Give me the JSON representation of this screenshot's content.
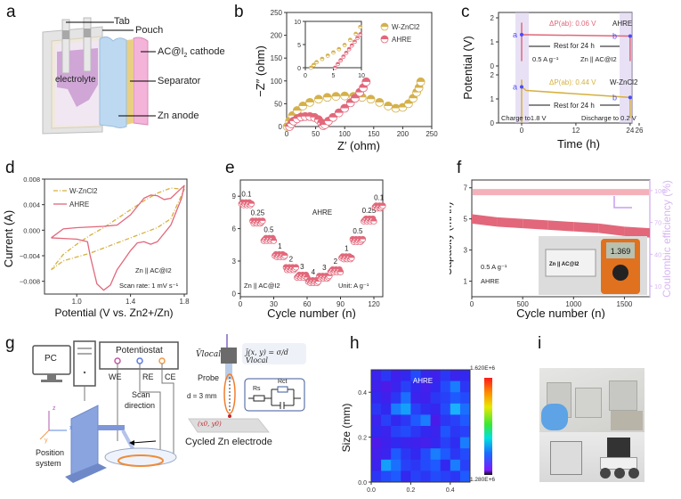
{
  "panel_labels": {
    "a": "a",
    "b": "b",
    "c": "c",
    "d": "d",
    "e": "e",
    "f": "f",
    "g": "g",
    "h": "h",
    "i": "i"
  },
  "panel_a": {
    "labels": {
      "tab": "Tab",
      "pouch": "Pouch",
      "cathode": "AC@I",
      "cathode_sub": "2",
      "cathode_tail": " cathode",
      "separator": "Separator",
      "anode": "Zn anode",
      "electrolyte": "electrolyte"
    }
  },
  "chart_data": [
    {
      "id": "b",
      "type": "scatter",
      "title": "",
      "xlabel": "Z′ (ohm)",
      "ylabel": "−Z″ (ohm)",
      "xlim": [
        0,
        250
      ],
      "ylim": [
        0,
        250
      ],
      "xticks": [
        "0",
        "50",
        "100",
        "150",
        "200",
        "250"
      ],
      "yticks": [
        "0",
        "50",
        "100",
        "150",
        "200",
        "250"
      ],
      "legend": {
        "position": "top-right",
        "entries": [
          "W-ZnCl2",
          "AHRE"
        ]
      },
      "series": [
        {
          "name": "W-ZnCl2",
          "color": "#d4b14a",
          "x": [
            1,
            5,
            10,
            18,
            28,
            40,
            55,
            70,
            85,
            100,
            115,
            130,
            145,
            160,
            175,
            188,
            200,
            210,
            218,
            224,
            228,
            231
          ],
          "y": [
            0,
            12,
            24,
            35,
            45,
            53,
            60,
            64,
            66,
            67,
            66,
            64,
            60,
            53,
            45,
            40,
            42,
            50,
            62,
            75,
            85,
            98
          ]
        },
        {
          "name": "AHRE",
          "color": "#e2677a",
          "x": [
            5,
            8,
            12,
            18,
            25,
            32,
            40,
            48,
            55,
            60,
            63,
            66,
            72,
            80,
            90,
            100,
            110,
            118,
            126,
            132,
            137
          ],
          "y": [
            0,
            6,
            12,
            17,
            21,
            22,
            22,
            20,
            15,
            8,
            2,
            4,
            12,
            20,
            30,
            40,
            52,
            62,
            75,
            85,
            98
          ]
        }
      ],
      "inset": {
        "xlim": [
          0,
          10
        ],
        "ylim": [
          0,
          10
        ],
        "xticks": [
          "0",
          "5",
          "10"
        ],
        "yticks": [
          "0",
          "5",
          "10"
        ],
        "series": [
          {
            "name": "W-ZnCl2",
            "x": [
              1,
              1.5,
              2,
              3,
              4,
              5,
              6,
              7,
              8,
              9,
              9.8
            ],
            "y": [
              0,
              0.6,
              1.2,
              1.9,
              2.6,
              3.3,
              4.0,
              4.9,
              6.0,
              7.3,
              8.8
            ]
          },
          {
            "name": "AHRE",
            "x": [
              5.3,
              5.8,
              6.3,
              6.8,
              7.3,
              7.8,
              8.3,
              8.8,
              9.3,
              9.8
            ],
            "y": [
              0,
              0.8,
              1.6,
              2.4,
              3.2,
              4.0,
              4.8,
              5.6,
              6.4,
              7.2
            ]
          }
        ]
      }
    },
    {
      "id": "c",
      "type": "line",
      "xlabel": "Time (h)",
      "ylabel": "Potential (V)",
      "xticks": [
        "0",
        "12",
        "24",
        "26"
      ],
      "yticks_top": [
        "0",
        "1",
        "2"
      ],
      "yticks_bottom": [
        "0",
        "1",
        "2"
      ],
      "annotations": {
        "dp_top": "ΔP(ab):  0.06 V",
        "dp_bottom": "ΔP(ab):  0.44 V",
        "series_top": "AHRE",
        "series_bottom": "W-ZnCl2",
        "rest_top": "Rest for 24 h",
        "rest_bottom": "Rest for 24 h",
        "current": "0.5 A g⁻¹",
        "cell": "Zn || AC@I2",
        "charge": "Charge to1.8 V",
        "discharge": "Discharge to 0.2 V",
        "point_a": "a",
        "point_b": "b"
      },
      "series": [
        {
          "name": "AHRE",
          "color": "#e2677a",
          "a_potential": 1.3,
          "b_potential": 1.24,
          "delta_v": 0.06
        },
        {
          "name": "W-ZnCl2",
          "color": "#d6b13e",
          "a_potential": 1.5,
          "b_potential": 1.06,
          "delta_v": 0.44
        }
      ]
    },
    {
      "id": "d",
      "type": "line",
      "xlabel": "Potential (V vs. Zn2+/Zn)",
      "ylabel": "Current (A)",
      "xlim": [
        0.8,
        1.8
      ],
      "ylim": [
        -0.01,
        0.008
      ],
      "xticks": [
        "1.0",
        "1.4",
        "1.8"
      ],
      "yticks": [
        "0.008",
        "0.004",
        "0.000",
        "−0.004",
        "−0.008"
      ],
      "legend": {
        "position": "top-left",
        "entries": [
          "W-ZnCl2",
          "AHRE"
        ]
      },
      "annotations": {
        "cell": "Zn || AC@I2",
        "scan_rate": "Scan rate: 1 mV s⁻¹"
      },
      "series": [
        {
          "name": "W-ZnCl2",
          "color": "#d6b13e",
          "style": "dash-dot",
          "x": [
            0.81,
            0.9,
            1.0,
            1.1,
            1.2,
            1.3,
            1.4,
            1.5,
            1.6,
            1.7,
            1.8,
            1.8,
            1.7,
            1.6,
            1.5,
            1.4,
            1.3,
            1.2,
            1.1,
            1.0,
            0.9,
            0.81
          ],
          "y": [
            -0.0062,
            -0.0048,
            -0.0042,
            -0.0036,
            -0.0028,
            -0.002,
            -0.0012,
            -0.0004,
            0.0004,
            0.0018,
            0.0064,
            0.0064,
            0.0066,
            0.0058,
            0.0046,
            0.0032,
            0.0018,
            0.0004,
            -0.0008,
            -0.0022,
            -0.0038,
            -0.0062
          ]
        },
        {
          "name": "AHRE",
          "color": "#e2677a",
          "style": "solid",
          "x": [
            0.81,
            0.9,
            1.0,
            1.1,
            1.2,
            1.3,
            1.4,
            1.5,
            1.55,
            1.6,
            1.65,
            1.7,
            1.75,
            1.8,
            1.78,
            1.7,
            1.6,
            1.55,
            1.5,
            1.45,
            1.4,
            1.3,
            1.25,
            1.2,
            1.15,
            1.1,
            1.08,
            1.0,
            0.9,
            0.81
          ],
          "y": [
            -0.0012,
            0.0002,
            0.0004,
            0.0005,
            0.0006,
            0.0008,
            0.0024,
            0.005,
            0.0055,
            0.0054,
            0.0048,
            0.005,
            0.006,
            0.007,
            0.005,
            0.0008,
            -0.0018,
            -0.0022,
            -0.0018,
            -0.002,
            -0.0032,
            -0.0062,
            -0.0086,
            -0.0094,
            -0.0084,
            -0.004,
            -0.0018,
            -0.0014,
            -0.0013,
            -0.0012
          ]
        }
      ]
    },
    {
      "id": "e",
      "type": "scatter",
      "xlabel": "Cycle number (n)",
      "ylabel": "Capacity (mAh)",
      "xlim": [
        0,
        128
      ],
      "ylim": [
        -0.3,
        10.5
      ],
      "xticks": [
        "0",
        "30",
        "60",
        "90",
        "120"
      ],
      "yticks": [
        "0",
        "3",
        "6",
        "9"
      ],
      "annotations": {
        "series": "AHRE",
        "cell": "Zn || AC@I2",
        "unit": "Unit: A g⁻¹"
      },
      "color": "#e2677a",
      "steps": [
        {
          "rate": "0.1",
          "start": 1,
          "end": 10,
          "capacity": 8.3
        },
        {
          "rate": "0.25",
          "start": 11,
          "end": 20,
          "capacity": 6.6
        },
        {
          "rate": "0.5",
          "start": 21,
          "end": 30,
          "capacity": 5.0
        },
        {
          "rate": "1",
          "start": 31,
          "end": 40,
          "capacity": 3.5
        },
        {
          "rate": "2",
          "start": 41,
          "end": 50,
          "capacity": 2.3
        },
        {
          "rate": "3",
          "start": 51,
          "end": 60,
          "capacity": 1.6
        },
        {
          "rate": "4",
          "start": 61,
          "end": 70,
          "capacity": 1.1
        },
        {
          "rate": "3",
          "start": 71,
          "end": 80,
          "capacity": 1.5
        },
        {
          "rate": "2",
          "start": 81,
          "end": 90,
          "capacity": 2.1
        },
        {
          "rate": "1",
          "start": 91,
          "end": 100,
          "capacity": 3.3
        },
        {
          "rate": "0.5",
          "start": 101,
          "end": 110,
          "capacity": 4.9
        },
        {
          "rate": "0.25",
          "start": 111,
          "end": 120,
          "capacity": 6.8
        },
        {
          "rate": "0.1",
          "start": 121,
          "end": 128,
          "capacity": 8.0
        }
      ]
    },
    {
      "id": "f",
      "type": "scatter",
      "xlabel": "Cycle number (n)",
      "ylabel": "Capacity (mAh)",
      "ylabel_right": "Coulombic efficiency (%)",
      "xlim": [
        0,
        1750
      ],
      "ylim": [
        0,
        7.5
      ],
      "ylim_right": [
        0,
        110
      ],
      "xticks": [
        "0",
        "500",
        "1000",
        "1500"
      ],
      "yticks": [
        "1",
        "3",
        "5",
        "7"
      ],
      "yticks_right": [
        "10",
        "40",
        "70",
        "100"
      ],
      "annotations": {
        "current": "0.5 A g⁻¹",
        "series": "AHRE",
        "photo_cell": "Zn || AC@I2",
        "multimeter": "1.369"
      },
      "series": [
        {
          "name": "Capacity",
          "axis": "left",
          "color": "#e2677a",
          "x": [
            0,
            250,
            500,
            750,
            1000,
            1250,
            1500,
            1750
          ],
          "y": [
            5.0,
            4.8,
            4.7,
            4.6,
            4.5,
            4.4,
            4.2,
            4.1
          ]
        },
        {
          "name": "Coulombic efficiency",
          "axis": "right",
          "color": "#f3a9b3",
          "x": [
            0,
            250,
            500,
            750,
            1000,
            1250,
            1500,
            1750
          ],
          "y": [
            99.5,
            99.8,
            99.8,
            99.8,
            99.8,
            99.8,
            99.8,
            99.8
          ]
        }
      ]
    },
    {
      "id": "h",
      "type": "heatmap",
      "title": "AHRE",
      "xlabel": "Size (mm)",
      "ylabel": "Size (mm)",
      "xlim": [
        0,
        0.5
      ],
      "ylim": [
        0,
        0.5
      ],
      "xticks": [
        "0.0",
        "0.2",
        "0.4"
      ],
      "yticks": [
        "0.0",
        "0.2",
        "0.4"
      ],
      "colorbar": {
        "max": "1.620E+6",
        "min": "1.280E+6"
      },
      "values": [
        [
          0.12,
          0.18,
          0.1,
          0.15,
          0.22,
          0.14,
          0.1,
          0.18,
          0.12,
          0.15
        ],
        [
          0.1,
          0.05,
          0.12,
          0.2,
          0.15,
          0.08,
          0.15,
          0.22,
          0.3,
          0.18
        ],
        [
          0.15,
          0.1,
          0.18,
          0.28,
          0.12,
          0.1,
          0.18,
          0.2,
          0.25,
          0.22
        ],
        [
          0.18,
          0.15,
          0.3,
          0.35,
          0.2,
          0.16,
          0.14,
          0.22,
          0.38,
          0.28
        ],
        [
          0.12,
          0.2,
          0.15,
          0.18,
          0.25,
          0.3,
          0.06,
          0.18,
          0.2,
          0.25
        ],
        [
          0.15,
          0.12,
          0.2,
          0.22,
          0.18,
          0.15,
          0.12,
          0.24,
          0.18,
          0.2
        ],
        [
          0.05,
          0.1,
          0.15,
          0.12,
          0.1,
          0.08,
          0.14,
          0.2,
          0.16,
          0.3
        ],
        [
          0.08,
          0.12,
          0.25,
          0.18,
          0.15,
          0.22,
          0.3,
          0.25,
          0.18,
          0.22
        ],
        [
          0.12,
          0.35,
          0.28,
          0.2,
          0.18,
          0.22,
          0.25,
          0.15,
          0.3,
          0.2
        ],
        [
          0.18,
          0.22,
          0.25,
          0.15,
          0.2,
          0.18,
          0.22,
          0.2,
          0.18,
          0.25
        ]
      ]
    }
  ],
  "panel_g": {
    "labels": {
      "pc": "PC",
      "potentiostat": "Potentiostat",
      "we": "WE",
      "re": "RE",
      "ce": "CE",
      "scan": "Scan",
      "direction": "direction",
      "position": "Position",
      "system": "system",
      "probe": "Probe",
      "distance": "d = 3 mm",
      "electrode": "Cycled Zn electrode",
      "rs": "Rs",
      "rct": "Rct",
      "v_local": "V̄local",
      "equation": "j̄(x, y) = σ/d V̄local",
      "coord": "(x0, y0)",
      "axis_x": "x",
      "axis_y": "y",
      "axis_z": "z"
    }
  },
  "panel_i": {
    "description": "Photographs of pouch cells in series powering a toy rover"
  }
}
